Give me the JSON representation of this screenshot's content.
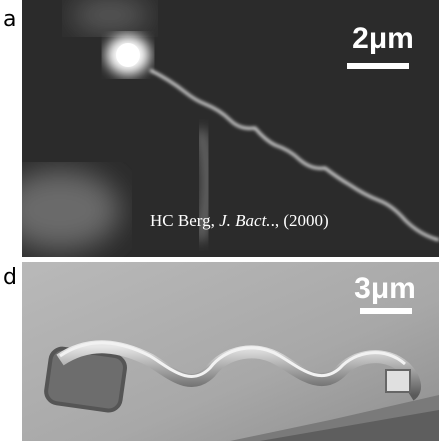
{
  "panels": [
    {
      "label": "a",
      "scale": "2μm",
      "credit": {
        "author": "HC Berg,",
        "journal": "J. Bact.",
        "year": "., (2000)"
      }
    },
    {
      "label": "d",
      "scale": "3μm"
    }
  ]
}
